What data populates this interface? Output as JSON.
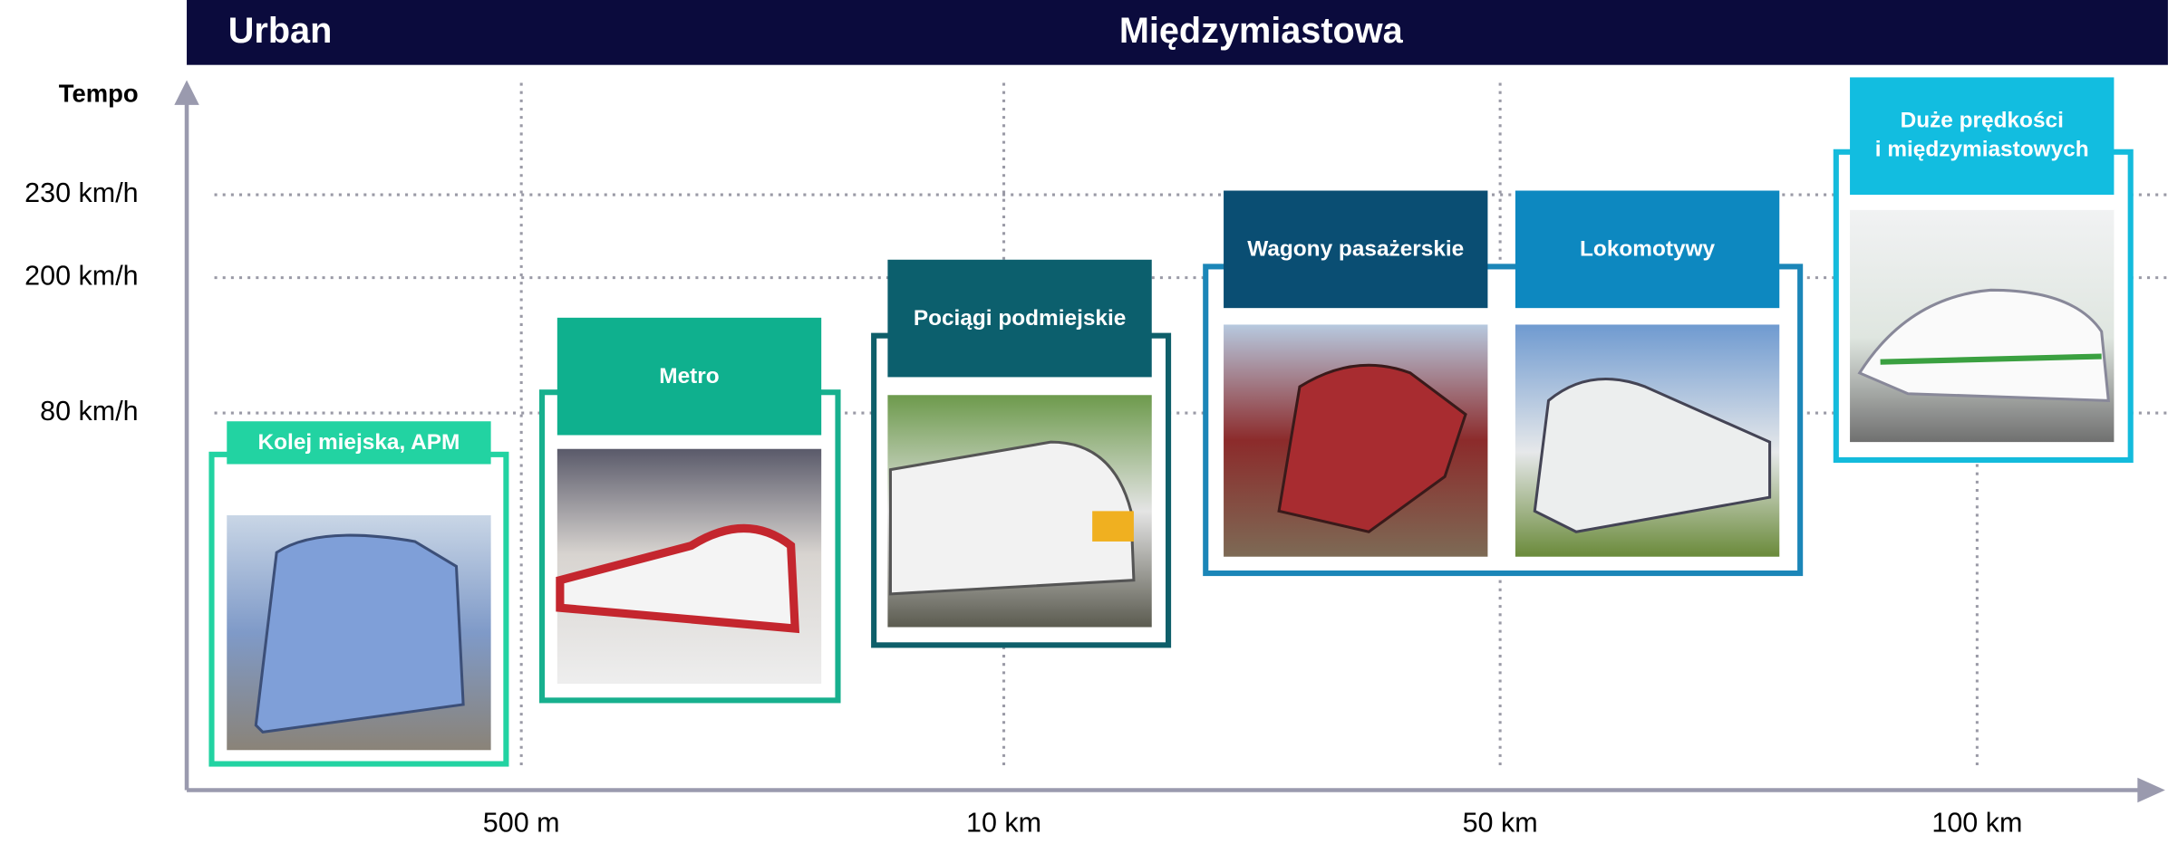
{
  "header": {
    "urban": "Urban",
    "intercity": "Międzymiastowa"
  },
  "axis": {
    "y_title": "Tempo",
    "y_labels": [
      "230 km/h",
      "200 km/h",
      "80 km/h"
    ],
    "x_labels": [
      "500 m",
      "10 km",
      "50 km",
      "100 km"
    ]
  },
  "categories": [
    {
      "label": "Kolej miejska, APM"
    },
    {
      "label": "Metro"
    },
    {
      "label": "Pociągi podmiejskie"
    },
    {
      "label": "Wagony pasażerskie"
    },
    {
      "label": "Lokomotywy"
    },
    {
      "label_lines": [
        "Duże prędkości",
        "i międzymiastowych"
      ]
    }
  ]
}
